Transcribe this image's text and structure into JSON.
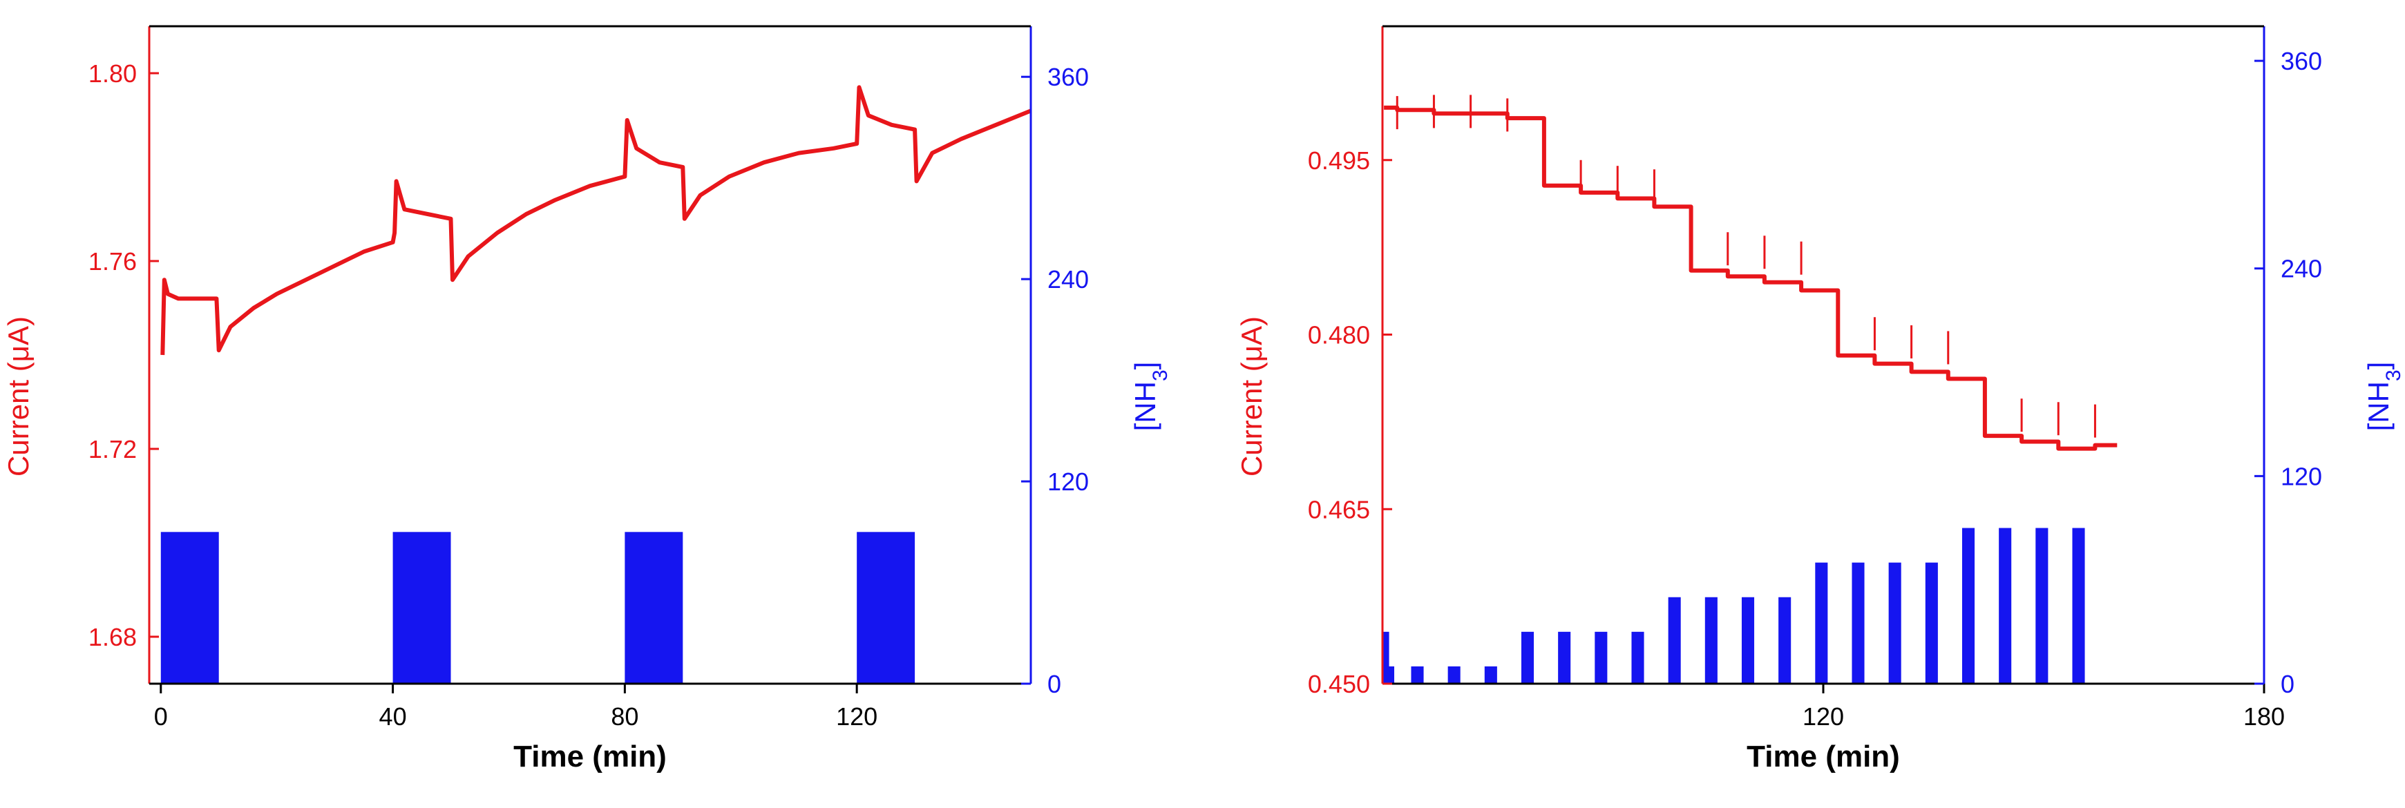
{
  "chart_data": [
    {
      "type": "line",
      "xlabel": "Time (min)",
      "ylabel_left": "Current (μA)",
      "ylabel_right": "[NH3]",
      "xlim": [
        -2,
        150
      ],
      "ylim_left": [
        1.67,
        1.81
      ],
      "ylim_right": [
        0,
        390
      ],
      "x_ticks": [
        "0",
        "40",
        "80",
        "120"
      ],
      "x_tick_values": [
        0,
        40,
        80,
        120
      ],
      "y_left_ticks": [
        "1.68",
        "1.72",
        "1.76",
        "1.80"
      ],
      "y_left_tick_values": [
        1.68,
        1.72,
        1.76,
        1.8
      ],
      "y_right_ticks": [
        "0",
        "120",
        "240",
        "360"
      ],
      "y_right_tick_values": [
        0,
        120,
        240,
        360
      ],
      "colors": {
        "current": "#e8161b",
        "nh3": "#1515f0",
        "axis": "#000000"
      },
      "series": [
        {
          "axis": "left",
          "color": "#e8161b",
          "points": [
            [
              0.3,
              1.74
            ],
            [
              0.6,
              1.756
            ],
            [
              1.2,
              1.753
            ],
            [
              3,
              1.752
            ],
            [
              6,
              1.752
            ],
            [
              9.6,
              1.752
            ],
            [
              10,
              1.741
            ],
            [
              12,
              1.746
            ],
            [
              16,
              1.75
            ],
            [
              20,
              1.753
            ],
            [
              25,
              1.756
            ],
            [
              30,
              1.759
            ],
            [
              35,
              1.762
            ],
            [
              40,
              1.764
            ],
            [
              40.3,
              1.766
            ],
            [
              40.6,
              1.777
            ],
            [
              42,
              1.771
            ],
            [
              46,
              1.77
            ],
            [
              50,
              1.769
            ],
            [
              50.3,
              1.756
            ],
            [
              53,
              1.761
            ],
            [
              58,
              1.766
            ],
            [
              63,
              1.77
            ],
            [
              68,
              1.773
            ],
            [
              74,
              1.776
            ],
            [
              80,
              1.778
            ],
            [
              80.4,
              1.79
            ],
            [
              82,
              1.784
            ],
            [
              86,
              1.781
            ],
            [
              90,
              1.78
            ],
            [
              90.3,
              1.769
            ],
            [
              93,
              1.774
            ],
            [
              98,
              1.778
            ],
            [
              104,
              1.781
            ],
            [
              110,
              1.783
            ],
            [
              116,
              1.784
            ],
            [
              120,
              1.785
            ],
            [
              120.4,
              1.797
            ],
            [
              122,
              1.791
            ],
            [
              126,
              1.789
            ],
            [
              130,
              1.788
            ],
            [
              130.3,
              1.777
            ],
            [
              133,
              1.783
            ],
            [
              138,
              1.786
            ],
            [
              144,
              1.789
            ],
            [
              150,
              1.792
            ]
          ]
        },
        {
          "axis": "right",
          "color": "#1515f0",
          "pulses": [
            [
              0,
              10,
              90
            ],
            [
              40,
              50,
              90
            ],
            [
              80,
              90,
              90
            ],
            [
              120,
              130,
              90
            ]
          ]
        }
      ]
    },
    {
      "type": "line",
      "xlabel": "Time (min)",
      "ylabel_left": "Current (μA)",
      "ylabel_right": "[NH3]",
      "xlim": [
        60,
        180
      ],
      "ylim_left": [
        0.45,
        0.5065
      ],
      "ylim_right": [
        0,
        380
      ],
      "x_ticks": [
        "120",
        "180"
      ],
      "x_tick_values": [
        120,
        180
      ],
      "y_left_ticks": [
        "0.450",
        "0.465",
        "0.480",
        "0.495"
      ],
      "y_left_tick_values": [
        0.45,
        0.465,
        0.48,
        0.495
      ],
      "y_right_ticks": [
        "0",
        "120",
        "240",
        "360"
      ],
      "y_right_tick_values": [
        0,
        120,
        240,
        360
      ],
      "colors": {
        "current": "#e8161b",
        "nh3": "#1515f0",
        "axis": "#000000"
      },
      "series": [
        {
          "axis": "left",
          "color": "#e8161b",
          "steps": [
            [
              60.2,
              62.0,
              0.4995
            ],
            [
              62,
              67,
              0.4993
            ],
            [
              67,
              72,
              0.499
            ],
            [
              72,
              77,
              0.499
            ],
            [
              77,
              82,
              0.4986
            ],
            [
              82,
              87,
              0.4928
            ],
            [
              87,
              92,
              0.4922
            ],
            [
              92,
              97,
              0.4917
            ],
            [
              97,
              102,
              0.491
            ],
            [
              102,
              107,
              0.4855
            ],
            [
              107,
              112,
              0.485
            ],
            [
              112,
              117,
              0.4845
            ],
            [
              117,
              122,
              0.4838
            ],
            [
              122,
              127,
              0.4782
            ],
            [
              127,
              132,
              0.4775
            ],
            [
              132,
              137,
              0.4768
            ],
            [
              137,
              142,
              0.4762
            ],
            [
              142,
              147,
              0.4713
            ],
            [
              147,
              152,
              0.4708
            ],
            [
              152,
              157,
              0.4702
            ],
            [
              157,
              160,
              0.4705
            ]
          ],
          "spikes": [
            [
              62,
              0.5005
            ],
            [
              67,
              0.5006
            ],
            [
              72,
              0.5006
            ],
            [
              77,
              0.5003
            ],
            [
              82,
              0.496
            ],
            [
              87,
              0.495
            ],
            [
              92,
              0.4945
            ],
            [
              97,
              0.4942
            ],
            [
              102,
              0.4895
            ],
            [
              107,
              0.4888
            ],
            [
              112,
              0.4885
            ],
            [
              117,
              0.488
            ],
            [
              122,
              0.4825
            ],
            [
              127,
              0.4815
            ],
            [
              132,
              0.4808
            ],
            [
              137,
              0.4803
            ],
            [
              142,
              0.4755
            ],
            [
              147,
              0.4745
            ],
            [
              152,
              0.4742
            ],
            [
              157,
              0.474
            ]
          ]
        },
        {
          "axis": "right",
          "color": "#1515f0",
          "pulses": [
            [
              60,
              60.9,
              30
            ],
            [
              60,
              61.6,
              10
            ],
            [
              63.9,
              65.6,
              10
            ],
            [
              68.9,
              70.6,
              10
            ],
            [
              73.9,
              75.6,
              10
            ],
            [
              78.9,
              80.6,
              30
            ],
            [
              83.9,
              85.6,
              30
            ],
            [
              88.9,
              90.6,
              30
            ],
            [
              93.9,
              95.6,
              30
            ],
            [
              98.9,
              100.6,
              50
            ],
            [
              103.9,
              105.6,
              50
            ],
            [
              108.9,
              110.6,
              50
            ],
            [
              113.9,
              115.6,
              50
            ],
            [
              118.9,
              120.6,
              70
            ],
            [
              123.9,
              125.6,
              70
            ],
            [
              128.9,
              130.6,
              70
            ],
            [
              133.9,
              135.6,
              70
            ],
            [
              138.9,
              140.6,
              90
            ],
            [
              143.9,
              145.6,
              90
            ],
            [
              148.9,
              150.6,
              90
            ],
            [
              153.9,
              155.6,
              90
            ]
          ]
        }
      ]
    }
  ]
}
